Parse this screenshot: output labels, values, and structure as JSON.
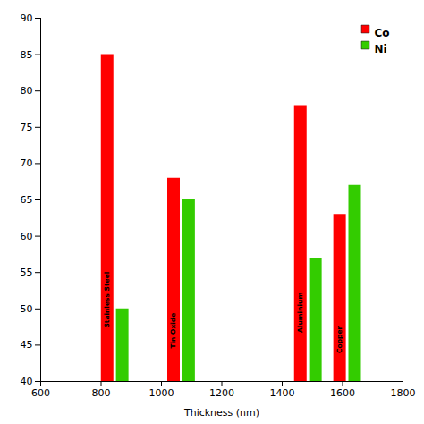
{
  "chart_data": {
    "type": "bar",
    "xlabel": "Thickness (nm)",
    "categories": [
      "Stainless Steel",
      "Tin Oxide",
      "Aluminium",
      "Copper"
    ],
    "series": [
      {
        "name": "Co",
        "color": "#FF0000",
        "x": [
          820,
          1040,
          1460,
          1590
        ],
        "values": [
          85,
          68,
          78,
          63
        ]
      },
      {
        "name": "Ni",
        "color": "#33CC00",
        "x": [
          870,
          1090,
          1510,
          1640
        ],
        "values": [
          50,
          65,
          57,
          67
        ]
      }
    ],
    "xlim": [
      600,
      1800
    ],
    "ylim": [
      40,
      90
    ],
    "xticks": [
      600,
      800,
      1000,
      1200,
      1400,
      1600,
      1800
    ],
    "yticks": [
      40,
      45,
      50,
      55,
      60,
      65,
      70,
      75,
      80,
      85,
      90
    ],
    "grid": false,
    "legend": "upper right"
  }
}
